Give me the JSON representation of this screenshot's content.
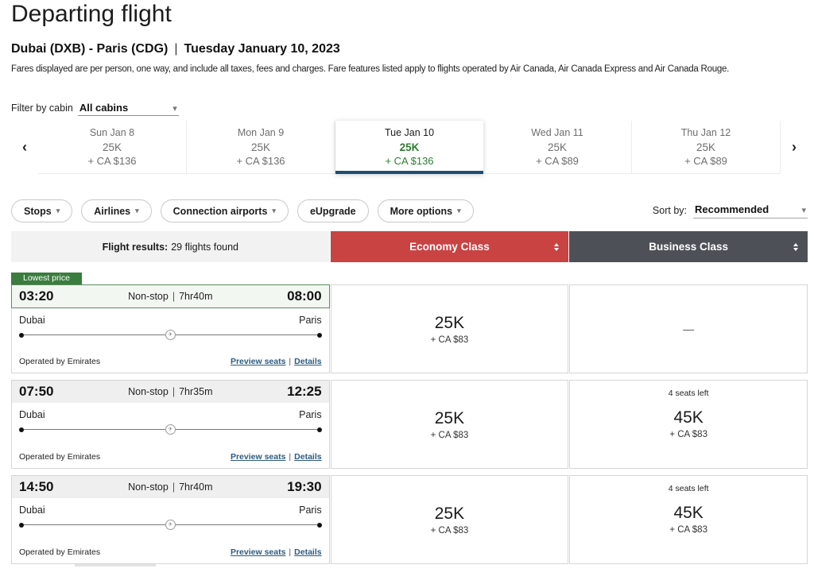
{
  "page": {
    "title": "Departing flight",
    "route": "Dubai (DXB) - Paris (CDG)",
    "separator": "|",
    "date": "Tuesday January 10, 2023",
    "disclaimer": "Fares displayed are per person, one way, and include all taxes, fees and charges. Fare features listed apply to flights operated by Air Canada, Air Canada Express and Air Canada Rouge."
  },
  "icons": {
    "caret_down": "▾",
    "chevron_left": "‹",
    "chevron_right": "›",
    "plane": "✈"
  },
  "ui": {
    "pipe": "|"
  },
  "colors": {
    "economy_header": "#c94343",
    "business_header": "#4d5157",
    "lowest_price_green": "#3b7c3f",
    "selected_day_accent": "#1d4e74",
    "points_green": "#2e7d33",
    "link_blue": "#2d5b7e"
  },
  "cabin_filter": {
    "label": "Filter by cabin",
    "value": "All cabins"
  },
  "date_carousel": {
    "days": [
      {
        "date": "Sun Jan 8",
        "points": "25K",
        "cash": "+ CA $136",
        "selected": false
      },
      {
        "date": "Mon Jan 9",
        "points": "25K",
        "cash": "+ CA $136",
        "selected": false
      },
      {
        "date": "Tue Jan 10",
        "points": "25K",
        "cash": "+ CA $136",
        "selected": true
      },
      {
        "date": "Wed Jan 11",
        "points": "25K",
        "cash": "+ CA $89",
        "selected": false
      },
      {
        "date": "Thu Jan 12",
        "points": "25K",
        "cash": "+ CA $89",
        "selected": false
      }
    ]
  },
  "filters": {
    "buttons": [
      {
        "label": "Stops"
      },
      {
        "label": "Airlines"
      },
      {
        "label": "Connection airports"
      },
      {
        "label": "eUpgrade"
      },
      {
        "label": "More options"
      }
    ],
    "sort": {
      "label": "Sort by:",
      "value": "Recommended"
    }
  },
  "results_header": {
    "flight_results_label": "Flight results:",
    "flight_results_count": "29 flights found",
    "economy_label": "Economy Class",
    "business_label": "Business Class"
  },
  "flights": [
    {
      "badge": "Lowest price",
      "departure_time": "03:20",
      "stops": "Non-stop",
      "duration": "7hr40m",
      "arrival_time": "08:00",
      "origin": "Dubai",
      "destination": "Paris",
      "operated_by": "Operated by Emirates",
      "links": {
        "preview_seats": "Preview seats",
        "details": "Details"
      },
      "economy": {
        "points": "25K",
        "cash": "+ CA $83"
      },
      "business": {
        "unavailable": "—"
      }
    },
    {
      "departure_time": "07:50",
      "stops": "Non-stop",
      "duration": "7hr35m",
      "arrival_time": "12:25",
      "origin": "Dubai",
      "destination": "Paris",
      "operated_by": "Operated by Emirates",
      "links": {
        "preview_seats": "Preview seats",
        "details": "Details"
      },
      "economy": {
        "points": "25K",
        "cash": "+ CA $83"
      },
      "business": {
        "seats_left": "4 seats left",
        "points": "45K",
        "cash": "+ CA $83"
      }
    },
    {
      "departure_time": "14:50",
      "stops": "Non-stop",
      "duration": "7hr40m",
      "arrival_time": "19:30",
      "origin": "Dubai",
      "destination": "Paris",
      "operated_by": "Operated by Emirates",
      "links": {
        "preview_seats": "Preview seats",
        "details": "Details"
      },
      "economy": {
        "points": "25K",
        "cash": "+ CA $83"
      },
      "business": {
        "seats_left": "4 seats left",
        "points": "45K",
        "cash": "+ CA $83"
      }
    }
  ]
}
